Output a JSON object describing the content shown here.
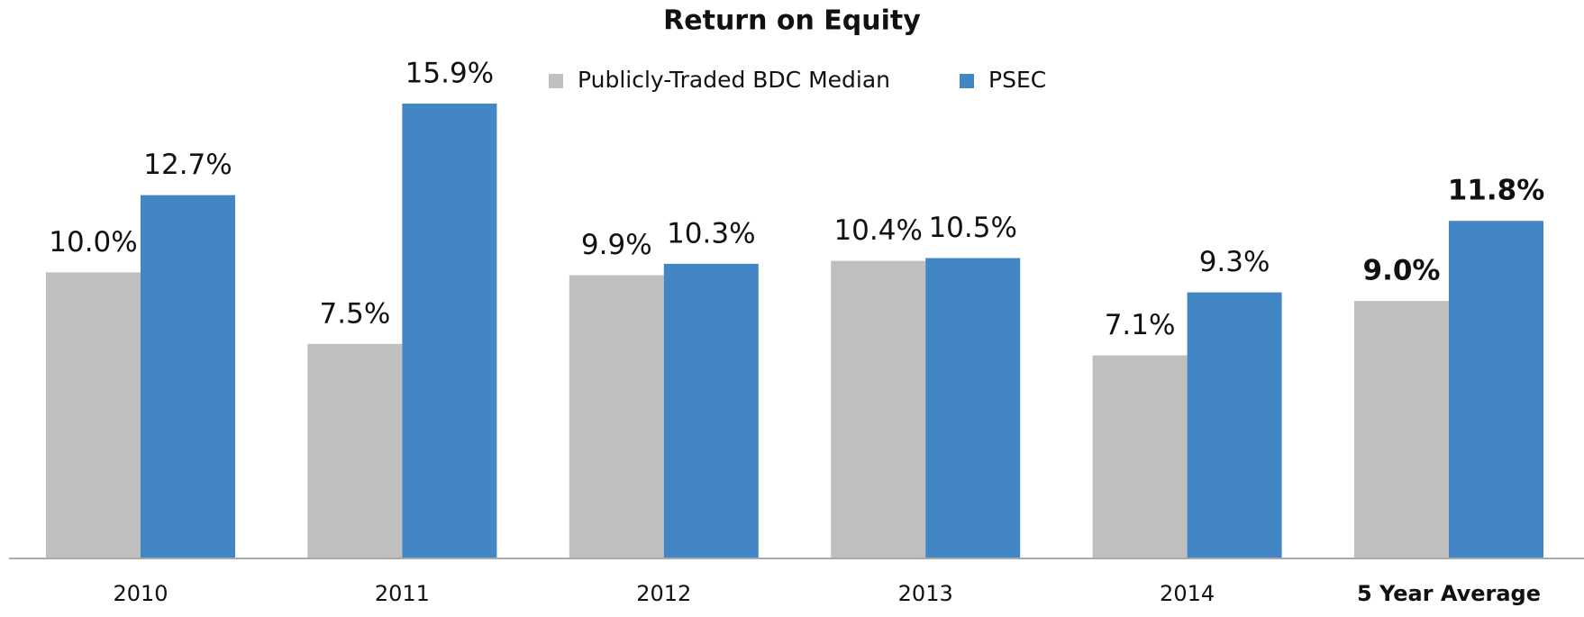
{
  "chart_data": {
    "type": "bar",
    "title": "Return on Equity",
    "categories": [
      "2010",
      "2011",
      "2012",
      "2013",
      "2014",
      "5 Year Average"
    ],
    "series": [
      {
        "name": "Publicly-Traded BDC Median",
        "color": "#bfbfbf",
        "values": [
          10.0,
          7.5,
          9.9,
          10.4,
          7.1,
          9.0
        ],
        "value_labels": [
          "10.0%",
          "7.5%",
          "9.9%",
          "10.4%",
          "7.1%",
          "9.0%"
        ]
      },
      {
        "name": "PSEC",
        "color": "#4286c6",
        "values": [
          12.7,
          15.9,
          10.3,
          10.5,
          9.3,
          11.8
        ],
        "value_labels": [
          "12.7%",
          "15.9%",
          "10.3%",
          "10.5%",
          "9.3%",
          "11.8%"
        ]
      }
    ]
  }
}
